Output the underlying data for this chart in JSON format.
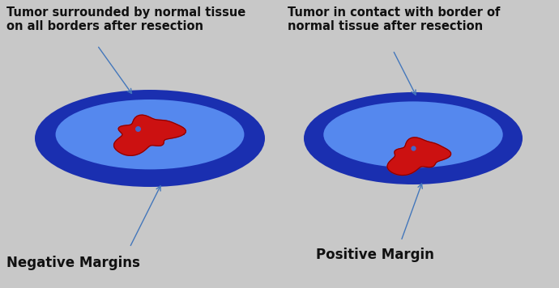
{
  "bg_color": "#c8c8c8",
  "title_left": "Tumor surrounded by normal tissue\non all borders after resection",
  "title_right": "Tumor in contact with border of\nnormal tissue after resection",
  "label_left": "Negative Margins",
  "label_right": "Positive Margin",
  "outer_blue_dark": "#1a2fb0",
  "outer_blue_mid": "#3355cc",
  "inner_blue_light": "#5588ee",
  "tumor_red": "#cc1111",
  "tumor_dark_red": "#880000",
  "arrow_color": "#4477bb",
  "text_color": "#111111",
  "title_fontsize": 10.5,
  "label_fontsize": 12
}
